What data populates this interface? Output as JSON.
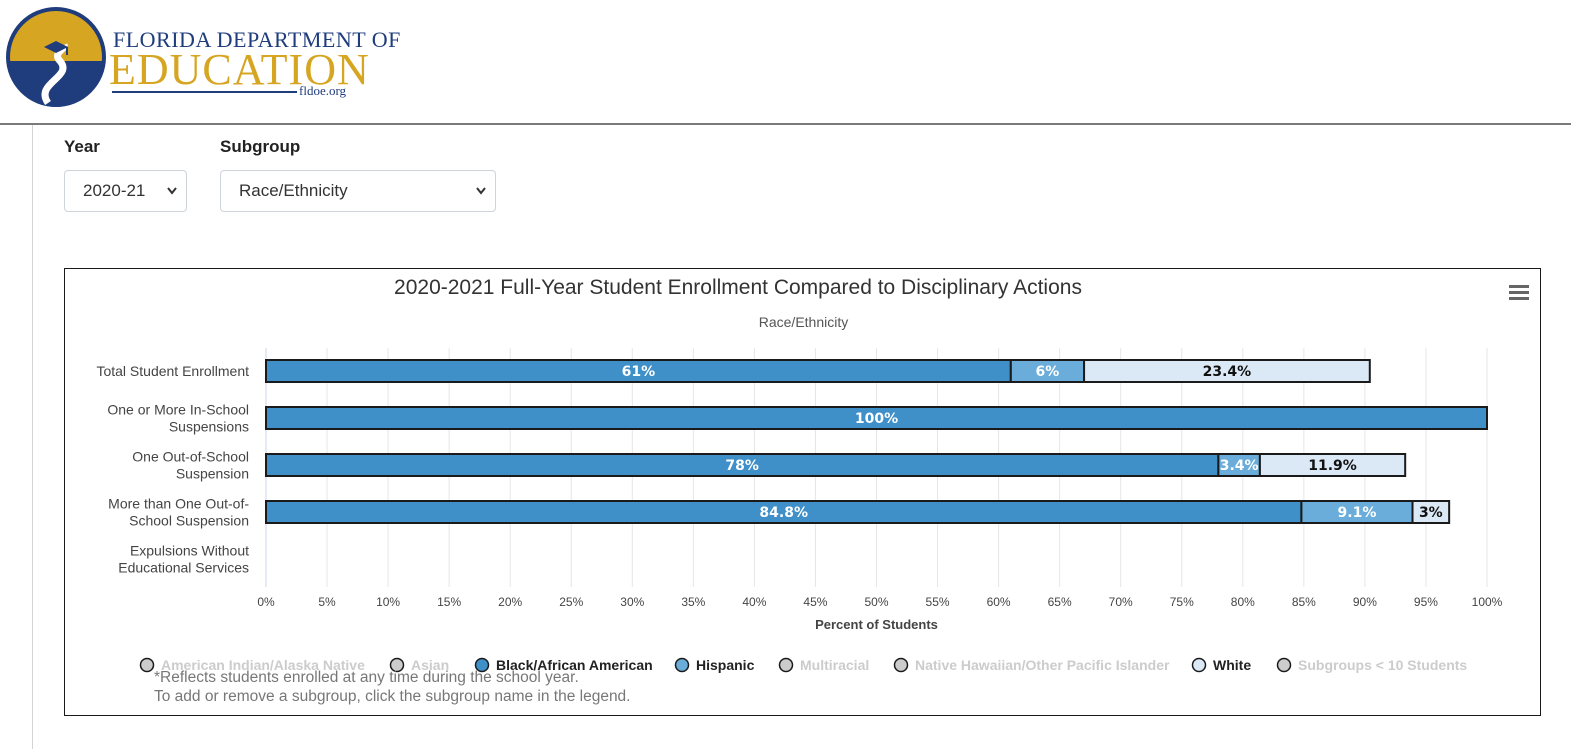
{
  "header": {
    "logo_line1": "FLORIDA DEPARTMENT OF",
    "logo_line2": "EDUCATION",
    "logo_url": "fldoe.org"
  },
  "filters": {
    "year_label": "Year",
    "year_value": "2020-21",
    "subgroup_label": "Subgroup",
    "subgroup_value": "Race/Ethnicity"
  },
  "chart_data": {
    "type": "bar",
    "orientation": "horizontal",
    "stacked": true,
    "title": "2020-2021 Full-Year Student Enrollment Compared to Disciplinary Actions",
    "subtitle": "Race/Ethnicity",
    "xlabel": "Percent of Students",
    "ylabel": "",
    "xlim": [
      0,
      100
    ],
    "xticks": [
      "0%",
      "5%",
      "10%",
      "15%",
      "20%",
      "25%",
      "30%",
      "35%",
      "40%",
      "45%",
      "50%",
      "55%",
      "60%",
      "65%",
      "70%",
      "75%",
      "80%",
      "85%",
      "90%",
      "95%",
      "100%"
    ],
    "grid": true,
    "categories": [
      [
        "Total Student Enrollment"
      ],
      [
        "One or More In-School",
        "Suspensions"
      ],
      [
        "One Out-of-School",
        "Suspension"
      ],
      [
        "More than One Out-of-",
        "School Suspension"
      ],
      [
        "Expulsions Without",
        "Educational Services"
      ]
    ],
    "series": [
      {
        "name": "Black/African American",
        "color": "#3f8fc8",
        "label_color": "#ffffff",
        "values": [
          61,
          100,
          78,
          84.8,
          null
        ],
        "labels": [
          "61%",
          "100%",
          "78%",
          "84.8%",
          ""
        ]
      },
      {
        "name": "Hispanic",
        "color": "#6aadda",
        "label_color": "#ffffff",
        "values": [
          6,
          null,
          3.4,
          9.1,
          null
        ],
        "labels": [
          "6%",
          "",
          "3.4%",
          "9.1%",
          ""
        ]
      },
      {
        "name": "White",
        "color": "#dbe9f6",
        "label_color": "#111111",
        "values": [
          23.4,
          null,
          11.9,
          3,
          null
        ],
        "labels": [
          "23.4%",
          "",
          "11.9%",
          "3%",
          ""
        ]
      }
    ],
    "legend": {
      "placement": "bottom",
      "items": [
        {
          "name": "American Indian/Alaska Native",
          "active": false,
          "color": "#cccccc"
        },
        {
          "name": "Asian",
          "active": false,
          "color": "#cccccc"
        },
        {
          "name": "Black/African American",
          "active": true,
          "color": "#3f8fc8"
        },
        {
          "name": "Hispanic",
          "active": true,
          "color": "#6aadda"
        },
        {
          "name": "Multiracial",
          "active": false,
          "color": "#cccccc"
        },
        {
          "name": "Native Hawaiian/Other Pacific Islander",
          "active": false,
          "color": "#cccccc"
        },
        {
          "name": "White",
          "active": true,
          "color": "#dbe9f6"
        },
        {
          "name": "Subgroups < 10 Students",
          "active": false,
          "color": "#cccccc"
        }
      ]
    }
  },
  "notes": {
    "line1": "*Reflects students enrolled at any time during the school year.",
    "line2": "To add or remove a subgroup, click the subgroup name in the legend."
  }
}
